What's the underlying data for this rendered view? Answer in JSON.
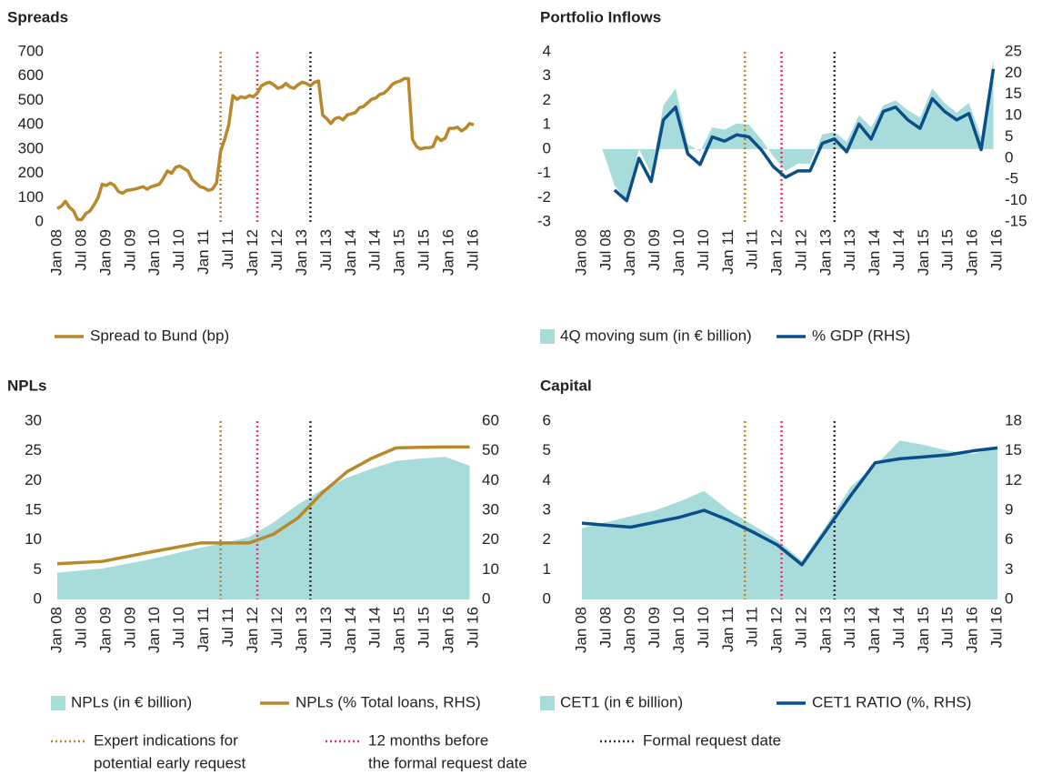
{
  "chart_data": [
    {
      "type": "line",
      "title": "Spreads",
      "x": [
        "Jan 08",
        "Feb 08",
        "Mar 08",
        "Apr 08",
        "May 08",
        "Jun 08",
        "Jul 08",
        "Aug 08",
        "Sep 08",
        "Oct 08",
        "Nov 08",
        "Dec 08",
        "Jan 09",
        "Feb 09",
        "Mar 09",
        "Apr 09",
        "May 09",
        "Jun 09",
        "Jul 09",
        "Aug 09",
        "Sep 09",
        "Oct 09",
        "Nov 09",
        "Dec 09",
        "Jan 10",
        "Feb 10",
        "Mar 10",
        "Apr 10",
        "May 10",
        "Jun 10",
        "Jul 10",
        "Aug 10",
        "Sep 10",
        "Oct 10",
        "Nov 10",
        "Dec 10",
        "Jan 11",
        "Feb 11",
        "Mar 11",
        "Apr 11",
        "May 11",
        "Jun 11",
        "Jul 11",
        "Aug 11",
        "Sep 11",
        "Oct 11",
        "Nov 11",
        "Dec 11",
        "Jan 12",
        "Feb 12",
        "Mar 12",
        "Apr 12",
        "May 12",
        "Jun 12",
        "Jul 12",
        "Aug 12",
        "Sep 12",
        "Oct 12",
        "Nov 12",
        "Dec 12",
        "Jan 13",
        "Feb 13",
        "Mar 13",
        "Apr 13",
        "May 13",
        "Jun 13",
        "Jul 13",
        "Aug 13",
        "Sep 13",
        "Oct 13",
        "Nov 13",
        "Dec 13",
        "Jan 14",
        "Feb 14",
        "Mar 14",
        "Apr 14",
        "May 14",
        "Jun 14",
        "Jul 14",
        "Aug 14",
        "Sep 14",
        "Oct 14",
        "Nov 14",
        "Dec 14",
        "Jan 15",
        "Feb 15",
        "Mar 15",
        "Apr 15",
        "May 15",
        "Jun 15",
        "Jul 15",
        "Aug 15",
        "Sep 15",
        "Oct 15",
        "Nov 15",
        "Dec 15",
        "Jan 16",
        "Feb 16",
        "Mar 16",
        "Apr 16",
        "May 16",
        "Jun 16",
        "Jul 16"
      ],
      "series": [
        {
          "name": "Spread to Bund (bp)",
          "color": "#b8882a",
          "type": "line",
          "values": [
            55,
            65,
            85,
            60,
            45,
            10,
            10,
            35,
            45,
            70,
            100,
            155,
            150,
            160,
            150,
            125,
            118,
            130,
            132,
            135,
            140,
            145,
            135,
            145,
            150,
            155,
            180,
            210,
            200,
            225,
            230,
            220,
            210,
            175,
            160,
            145,
            140,
            130,
            135,
            160,
            290,
            340,
            400,
            520,
            505,
            515,
            510,
            520,
            515,
            530,
            560,
            570,
            575,
            565,
            550,
            555,
            570,
            555,
            550,
            565,
            575,
            570,
            560,
            575,
            580,
            440,
            425,
            405,
            425,
            430,
            420,
            440,
            445,
            450,
            470,
            475,
            490,
            505,
            510,
            525,
            530,
            545,
            565,
            575,
            580,
            590,
            590,
            340,
            310,
            300,
            305,
            305,
            310,
            350,
            335,
            345,
            385,
            385,
            390,
            375,
            385,
            405,
            400
          ]
        }
      ],
      "xlim": [
        "Jan 08",
        "Jul 16"
      ],
      "xticks": [
        "Jan 08",
        "Jul 08",
        "Jan 09",
        "Jul 09",
        "Jan 10",
        "Jul 10",
        "Jan 11",
        "Jul 11",
        "Jan 12",
        "Jul 12",
        "Jan 13",
        "Jul 13",
        "Jan 14",
        "Jul 14",
        "Jan 15",
        "Jul 15",
        "Jan 16",
        "Jul 16"
      ],
      "ylim": [
        0,
        700
      ],
      "yticks": [
        0,
        100,
        200,
        300,
        400,
        500,
        600,
        700
      ]
    },
    {
      "type": "combo",
      "title": "Portfolio Inflows",
      "x": [
        "Jun 08",
        "Sep 08",
        "Dec 08",
        "Mar 09",
        "Jun 09",
        "Sep 09",
        "Dec 09",
        "Mar 10",
        "Jun 10",
        "Sep 10",
        "Dec 10",
        "Mar 11",
        "Jun 11",
        "Sep 11",
        "Dec 11",
        "Mar 12",
        "Jun 12",
        "Sep 12",
        "Dec 12",
        "Mar 13",
        "Jun 13",
        "Sep 13",
        "Dec 13",
        "Mar 14",
        "Jun 14",
        "Sep 14",
        "Dec 14",
        "Mar 15",
        "Jun 15",
        "Sep 15",
        "Dec 15",
        "Mar 16",
        "Jun 16"
      ],
      "series": [
        {
          "name": "4Q moving sum (in € billion)",
          "color": "#a8dcda",
          "type": "area",
          "values": [
            0,
            -1.5,
            -2.1,
            0,
            -1,
            1.8,
            2.5,
            0.2,
            -0.1,
            0.9,
            0.8,
            1.05,
            1,
            0.4,
            -0.3,
            -0.9,
            -0.6,
            -0.6,
            0.6,
            0.7,
            0.3,
            1.4,
            0.9,
            1.8,
            2,
            1.6,
            1.3,
            2.5,
            1.9,
            1.5,
            1.9,
            0.5,
            3.7
          ]
        },
        {
          "name": "% GDP (RHS)",
          "color": "#0b4f8a",
          "type": "line",
          "axis": "y2",
          "values": [
            null,
            -7.5,
            -10,
            0,
            -5.5,
            9,
            12,
            1,
            -1.5,
            5,
            4,
            5.5,
            5,
            2,
            -2,
            -4.5,
            -3,
            -3,
            3.5,
            4.5,
            1.5,
            8,
            4.5,
            11,
            12,
            9,
            7,
            14,
            11,
            9,
            10.5,
            2,
            21
          ]
        }
      ],
      "xlim": [
        "Jan 08",
        "Jul 16"
      ],
      "xticks": [
        "Jan 08",
        "Jul 08",
        "Jan 09",
        "Jul 09",
        "Jan 10",
        "Jul 10",
        "Jan 11",
        "Jul 11",
        "Jan 12",
        "Jul 12",
        "Jan 13",
        "Jul 13",
        "Jan 14",
        "Jul 14",
        "Jan 15",
        "Jul 15",
        "Jan 16",
        "Jul 16"
      ],
      "ylim": [
        -3,
        4
      ],
      "yticks": [
        -3,
        -2,
        -1,
        0,
        1,
        2,
        3,
        4
      ],
      "y2lim": [
        -15,
        25
      ],
      "y2ticks": [
        -15,
        -10,
        -5,
        0,
        5,
        10,
        15,
        20,
        25
      ]
    },
    {
      "type": "combo",
      "title": "NPLs",
      "x": [
        "Jan 08",
        "Dec 08",
        "Dec 09",
        "Dec 10",
        "Jun 11",
        "Dec 11",
        "Jun 12",
        "Dec 12",
        "Jun 13",
        "Dec 13",
        "Jun 14",
        "Dec 14",
        "Jun 15",
        "Dec 15",
        "Jun 16"
      ],
      "series": [
        {
          "name": "NPLs (in € billion)",
          "color": "#a8dcda",
          "type": "area",
          "values": [
            4.5,
            5.2,
            6.8,
            8.7,
            9.5,
            10.5,
            13,
            16,
            18.5,
            20.5,
            22,
            23.3,
            23.7,
            24,
            22.5
          ]
        },
        {
          "name": "NPLs (% Total loans, RHS)",
          "color": "#b8882a",
          "type": "line",
          "axis": "y2",
          "values": [
            12,
            12.8,
            16,
            19,
            19,
            19,
            22,
            27.5,
            36,
            43,
            47.5,
            51,
            51.2,
            51.3,
            51.3
          ]
        }
      ],
      "xlim": [
        "Jan 08",
        "Jul 16"
      ],
      "xticks": [
        "Jan 08",
        "Jul 08",
        "Jan 09",
        "Jul 09",
        "Jan 10",
        "Jul 10",
        "Jan 11",
        "Jul 11",
        "Jan 12",
        "Jul 12",
        "Jan 13",
        "Jul 13",
        "Jan 14",
        "Jul 14",
        "Jan 15",
        "Jul 15",
        "Jan 16",
        "Jul 16"
      ],
      "ylim": [
        0,
        30
      ],
      "yticks": [
        0,
        5,
        10,
        15,
        20,
        25,
        30
      ],
      "y2lim": [
        0,
        60
      ],
      "y2ticks": [
        0,
        10,
        20,
        30,
        40,
        50,
        60
      ]
    },
    {
      "type": "combo",
      "title": "Capital",
      "x": [
        "Jan 08",
        "Jul 08",
        "Jan 09",
        "Jul 09",
        "Jan 10",
        "Jul 10",
        "Jan 11",
        "Jul 11",
        "Jan 12",
        "Jul 12",
        "Jan 13",
        "Jul 13",
        "Jan 14",
        "Jul 14",
        "Jan 15",
        "Jul 15",
        "Jan 16",
        "Jul 16"
      ],
      "series": [
        {
          "name": "CET1 (in € billion)",
          "color": "#a8dcda",
          "type": "area",
          "values": [
            2.4,
            2.6,
            2.8,
            3.0,
            3.3,
            3.65,
            3.0,
            2.5,
            2.0,
            1.3,
            2.5,
            3.8,
            4.5,
            5.35,
            5.2,
            5.0,
            4.9,
            5.1
          ]
        },
        {
          "name": "CET1 RATIO (%, RHS)",
          "color": "#0b4f8a",
          "type": "line",
          "axis": "y2",
          "values": [
            7.7,
            7.5,
            7.3,
            7.8,
            8.3,
            9.0,
            8.0,
            6.8,
            5.5,
            3.5,
            7.0,
            10.5,
            13.8,
            14.2,
            14.4,
            14.6,
            15.0,
            15.3
          ]
        }
      ],
      "xlim": [
        "Jan 08",
        "Jul 16"
      ],
      "xticks": [
        "Jan 08",
        "Jul 08",
        "Jan 09",
        "Jul 09",
        "Jan 10",
        "Jul 10",
        "Jan 11",
        "Jul 11",
        "Jan 12",
        "Jul 12",
        "Jan 13",
        "Jul 13",
        "Jan 14",
        "Jul 14",
        "Jan 15",
        "Jul 15",
        "Jan 16",
        "Jul 16"
      ],
      "ylim": [
        0,
        6
      ],
      "yticks": [
        0,
        1,
        2,
        3,
        4,
        5,
        6
      ],
      "y2lim": [
        0,
        18
      ],
      "y2ticks": [
        0,
        3,
        6,
        9,
        12,
        15,
        18
      ]
    }
  ],
  "reference_lines": [
    {
      "name": [
        "Expert indications for",
        "potential early request"
      ],
      "x": "May 11",
      "color": "#b8882a"
    },
    {
      "name": [
        "12 months before",
        "the formal request date"
      ],
      "x": "Feb 12",
      "color": "#e8336b"
    },
    {
      "name": [
        "Formal request date"
      ],
      "x": "Mar 13",
      "color": "#333333"
    }
  ]
}
